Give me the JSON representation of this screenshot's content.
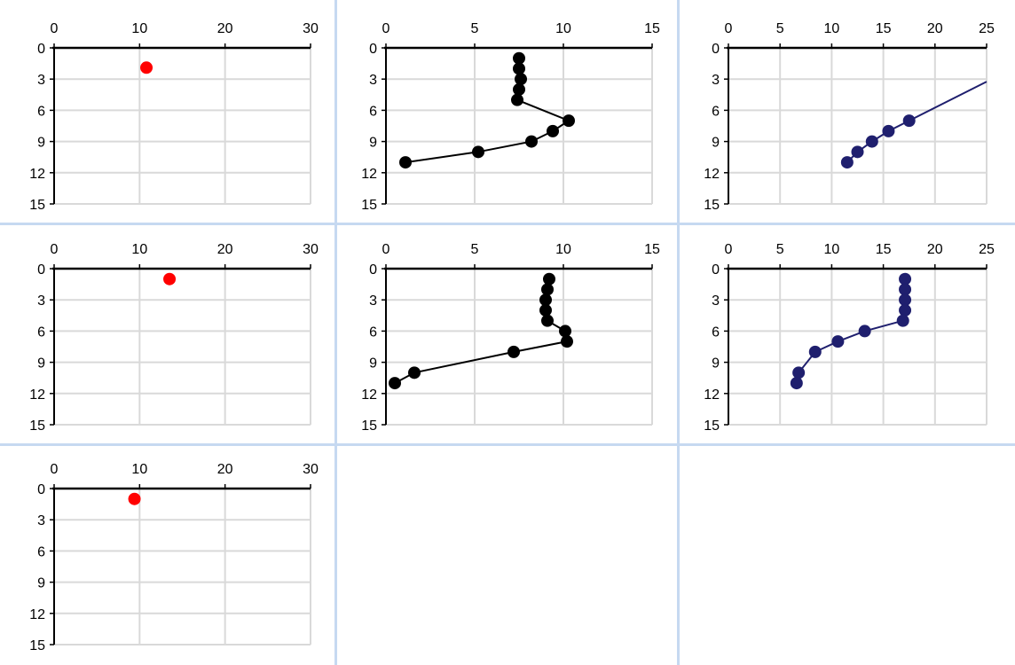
{
  "chart_data": [
    {
      "type": "scatter",
      "xlim": [
        0,
        30
      ],
      "ylim": [
        0,
        15
      ],
      "x_ticks": [
        "0",
        "10",
        "20",
        "30"
      ],
      "y_ticks": [
        "0",
        "3",
        "6",
        "9",
        "12",
        "15"
      ],
      "y_reversed": true,
      "x_axis_position": "top",
      "grid": true,
      "series": [
        {
          "color": "#ff0000",
          "connected": false,
          "points": [
            [
              10.8,
              1.9
            ]
          ]
        }
      ]
    },
    {
      "type": "line",
      "xlim": [
        0,
        15
      ],
      "ylim": [
        0,
        15
      ],
      "x_ticks": [
        "0",
        "5",
        "10",
        "15"
      ],
      "y_ticks": [
        "0",
        "3",
        "6",
        "9",
        "12",
        "15"
      ],
      "y_reversed": true,
      "x_axis_position": "top",
      "grid": true,
      "series": [
        {
          "color": "#000000",
          "connected": true,
          "points": [
            [
              7.5,
              1
            ],
            [
              7.5,
              2
            ],
            [
              7.6,
              3
            ],
            [
              7.5,
              4
            ],
            [
              7.4,
              5
            ],
            [
              10.3,
              7
            ],
            [
              9.4,
              8
            ],
            [
              8.2,
              9
            ],
            [
              5.2,
              10
            ],
            [
              1.1,
              11
            ]
          ]
        }
      ]
    },
    {
      "type": "line",
      "xlim": [
        0,
        25
      ],
      "ylim": [
        0,
        15
      ],
      "x_ticks": [
        "0",
        "5",
        "10",
        "15",
        "20",
        "25"
      ],
      "y_ticks": [
        "0",
        "3",
        "6",
        "9",
        "12",
        "15"
      ],
      "y_reversed": true,
      "x_axis_position": "top",
      "grid": true,
      "series": [
        {
          "color": "#1f1f6e",
          "connected": true,
          "trend_extends_to_right": true,
          "points": [
            [
              11.5,
              11
            ],
            [
              12.5,
              10
            ],
            [
              13.9,
              9
            ],
            [
              15.5,
              8
            ],
            [
              17.5,
              7
            ]
          ]
        }
      ]
    },
    {
      "type": "scatter",
      "xlim": [
        0,
        30
      ],
      "ylim": [
        0,
        15
      ],
      "x_ticks": [
        "0",
        "10",
        "20",
        "30"
      ],
      "y_ticks": [
        "0",
        "3",
        "6",
        "9",
        "12",
        "15"
      ],
      "y_reversed": true,
      "x_axis_position": "top",
      "grid": true,
      "series": [
        {
          "color": "#ff0000",
          "connected": false,
          "points": [
            [
              13.5,
              1
            ]
          ]
        }
      ]
    },
    {
      "type": "line",
      "xlim": [
        0,
        15
      ],
      "ylim": [
        0,
        15
      ],
      "x_ticks": [
        "0",
        "5",
        "10",
        "15"
      ],
      "y_ticks": [
        "0",
        "3",
        "6",
        "9",
        "12",
        "15"
      ],
      "y_reversed": true,
      "x_axis_position": "top",
      "grid": true,
      "series": [
        {
          "color": "#000000",
          "connected": true,
          "points": [
            [
              9.2,
              1
            ],
            [
              9.1,
              2
            ],
            [
              9.0,
              3
            ],
            [
              9.0,
              4
            ],
            [
              9.1,
              5
            ],
            [
              10.1,
              6
            ],
            [
              10.2,
              7
            ],
            [
              7.2,
              8
            ],
            [
              1.6,
              10
            ],
            [
              0.5,
              11
            ]
          ]
        }
      ]
    },
    {
      "type": "line",
      "xlim": [
        0,
        25
      ],
      "ylim": [
        0,
        15
      ],
      "x_ticks": [
        "0",
        "5",
        "10",
        "15",
        "20",
        "25"
      ],
      "y_ticks": [
        "0",
        "3",
        "6",
        "9",
        "12",
        "15"
      ],
      "y_reversed": true,
      "x_axis_position": "top",
      "grid": true,
      "series": [
        {
          "color": "#1f1f6e",
          "connected": true,
          "points": [
            [
              17.1,
              1
            ],
            [
              17.1,
              2
            ],
            [
              17.1,
              3
            ],
            [
              17.1,
              4
            ],
            [
              16.9,
              5
            ],
            [
              13.2,
              6
            ],
            [
              10.6,
              7
            ],
            [
              8.4,
              8
            ],
            [
              6.8,
              10
            ],
            [
              6.6,
              11
            ]
          ]
        }
      ]
    },
    {
      "type": "scatter",
      "xlim": [
        0,
        30
      ],
      "ylim": [
        0,
        15
      ],
      "x_ticks": [
        "0",
        "10",
        "20",
        "30"
      ],
      "y_ticks": [
        "0",
        "3",
        "6",
        "9",
        "12",
        "15"
      ],
      "y_reversed": true,
      "x_axis_position": "top",
      "grid": true,
      "series": [
        {
          "color": "#ff0000",
          "connected": false,
          "points": [
            [
              9.4,
              1
            ]
          ]
        }
      ]
    }
  ]
}
